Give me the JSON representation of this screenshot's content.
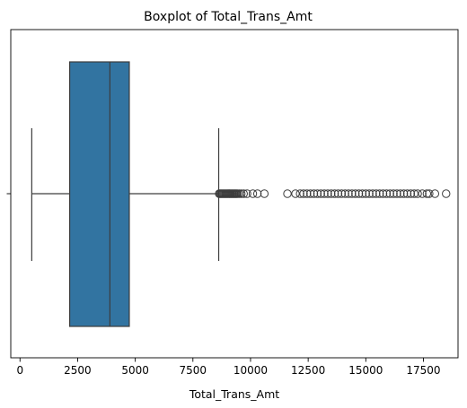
{
  "chart_data": {
    "type": "boxplot",
    "title": "Boxplot of Total_Trans_Amt",
    "xlabel": "Total_Trans_Amt",
    "ylabel": "",
    "xlim": [
      -400,
      19000
    ],
    "x_ticks": [
      0,
      2500,
      5000,
      7500,
      10000,
      12500,
      15000,
      17500
    ],
    "x_tick_labels": [
      "0",
      "2500",
      "5000",
      "7500",
      "10000",
      "12500",
      "15000",
      "17500"
    ],
    "grid": false,
    "legend": "none",
    "box": {
      "whisker_low": 510,
      "q1": 2155,
      "median": 3899,
      "q3": 4741,
      "whisker_high": 8619
    },
    "outliers": [
      8640,
      8680,
      8720,
      8760,
      8800,
      8840,
      8880,
      8920,
      8960,
      9000,
      9040,
      9080,
      9120,
      9160,
      9200,
      9240,
      9280,
      9320,
      9360,
      9400,
      9450,
      9520,
      9600,
      9700,
      9850,
      10100,
      10300,
      10600,
      11600,
      11950,
      12150,
      12300,
      12450,
      12600,
      12750,
      12900,
      13050,
      13200,
      13350,
      13500,
      13650,
      13800,
      13950,
      14100,
      14250,
      14400,
      14550,
      14700,
      14850,
      15000,
      15150,
      15300,
      15450,
      15600,
      15750,
      15900,
      16050,
      16200,
      16350,
      16500,
      16650,
      16800,
      16950,
      17100,
      17250,
      17450,
      17650,
      17750,
      18000,
      18484
    ],
    "colors": {
      "box_fill": "#3274a1",
      "line": "#3d3d3d",
      "axis": "#000000"
    }
  }
}
